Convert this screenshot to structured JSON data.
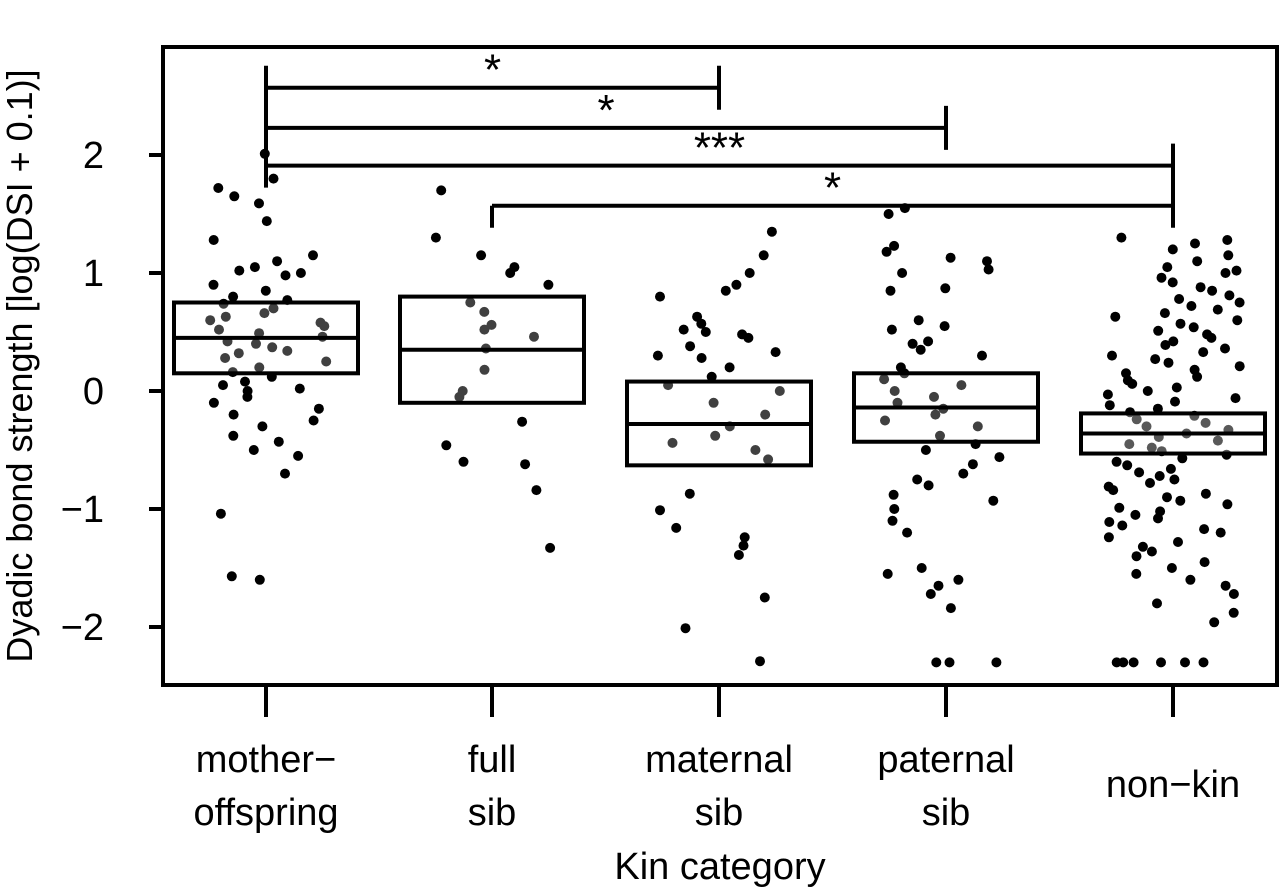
{
  "chart_data": {
    "type": "box",
    "xlabel": "Kin category",
    "ylabel": "Dyadic bond strength [log(DSI + 0.1)]",
    "ylim": [
      -2.5,
      3.0
    ],
    "yticks": [
      -2,
      -1,
      0,
      1,
      2
    ],
    "ytick_labels": [
      "−2",
      "−1",
      "0",
      "1",
      "2"
    ],
    "categories": [
      {
        "line1": "mother−",
        "line2": "offspring"
      },
      {
        "line1": "full",
        "line2": "sib"
      },
      {
        "line1": "maternal",
        "line2": "sib"
      },
      {
        "line1": "paternal",
        "line2": "sib"
      },
      {
        "line1": "non−kin",
        "line2": ""
      }
    ],
    "boxes": [
      {
        "q1": 0.15,
        "median": 0.45,
        "q3": 0.75
      },
      {
        "q1": -0.1,
        "median": 0.35,
        "q3": 0.8
      },
      {
        "q1": -0.63,
        "median": -0.28,
        "q3": 0.08
      },
      {
        "q1": -0.43,
        "median": -0.14,
        "q3": 0.15
      },
      {
        "q1": -0.53,
        "median": -0.36,
        "q3": -0.19
      }
    ],
    "points": [
      [
        2.01,
        1.8,
        1.72,
        1.65,
        1.59,
        1.44,
        1.28,
        1.15,
        1.1,
        1.05,
        1.02,
        1.0,
        0.98,
        0.9,
        0.85,
        0.8,
        0.77,
        0.74,
        0.7,
        0.66,
        0.63,
        0.6,
        0.58,
        0.55,
        0.52,
        0.49,
        0.46,
        0.42,
        0.4,
        0.37,
        0.34,
        0.32,
        0.28,
        0.25,
        0.2,
        0.16,
        0.12,
        0.08,
        0.05,
        0.02,
        0.0,
        -0.05,
        -0.1,
        -0.15,
        -0.2,
        -0.25,
        -0.3,
        -0.38,
        -0.43,
        -0.5,
        -0.55,
        -0.7,
        -1.04,
        -1.57,
        -1.6
      ],
      [
        1.7,
        1.3,
        1.15,
        1.05,
        1.0,
        0.9,
        0.75,
        0.67,
        0.56,
        0.52,
        0.46,
        0.36,
        0.18,
        0.0,
        -0.05,
        -0.26,
        -0.46,
        -0.6,
        -0.62,
        -0.84,
        -1.33
      ],
      [
        1.35,
        1.15,
        1.0,
        0.9,
        0.85,
        0.8,
        0.63,
        0.57,
        0.52,
        0.5,
        0.48,
        0.45,
        0.38,
        0.33,
        0.3,
        0.28,
        0.2,
        0.12,
        0.05,
        0.0,
        -0.1,
        -0.2,
        -0.3,
        -0.38,
        -0.44,
        -0.5,
        -0.58,
        -0.87,
        -1.01,
        -1.16,
        -1.24,
        -1.31,
        -1.39,
        -1.75,
        -2.01,
        -2.29
      ],
      [
        1.55,
        1.5,
        1.23,
        1.18,
        1.13,
        1.1,
        1.03,
        1.0,
        0.87,
        0.85,
        0.6,
        0.55,
        0.52,
        0.42,
        0.4,
        0.35,
        0.3,
        0.2,
        0.15,
        0.1,
        0.05,
        0.0,
        -0.05,
        -0.1,
        -0.15,
        -0.2,
        -0.25,
        -0.3,
        -0.38,
        -0.45,
        -0.5,
        -0.56,
        -0.62,
        -0.7,
        -0.75,
        -0.8,
        -0.88,
        -0.93,
        -1.0,
        -1.1,
        -1.2,
        -1.5,
        -1.55,
        -1.6,
        -1.65,
        -1.72,
        -1.84,
        -2.3,
        -2.3,
        -2.3
      ],
      [
        1.3,
        1.28,
        1.25,
        1.2,
        1.15,
        1.1,
        1.05,
        1.02,
        1.0,
        0.96,
        0.92,
        0.88,
        0.85,
        0.81,
        0.78,
        0.75,
        0.72,
        0.69,
        0.66,
        0.63,
        0.6,
        0.57,
        0.54,
        0.51,
        0.48,
        0.45,
        0.42,
        0.39,
        0.36,
        0.33,
        0.3,
        0.27,
        0.24,
        0.21,
        0.18,
        0.15,
        0.12,
        0.09,
        0.06,
        0.03,
        0.0,
        -0.03,
        -0.06,
        -0.09,
        -0.12,
        -0.15,
        -0.18,
        -0.21,
        -0.24,
        -0.27,
        -0.3,
        -0.33,
        -0.36,
        -0.39,
        -0.42,
        -0.45,
        -0.48,
        -0.51,
        -0.54,
        -0.57,
        -0.6,
        -0.63,
        -0.66,
        -0.69,
        -0.72,
        -0.75,
        -0.78,
        -0.81,
        -0.84,
        -0.87,
        -0.9,
        -0.93,
        -0.96,
        -0.99,
        -1.02,
        -1.05,
        -1.08,
        -1.11,
        -1.14,
        -1.17,
        -1.2,
        -1.24,
        -1.28,
        -1.32,
        -1.36,
        -1.4,
        -1.45,
        -1.5,
        -1.55,
        -1.6,
        -1.65,
        -1.72,
        -1.8,
        -1.88,
        -1.96,
        -2.3,
        -2.3,
        -2.3,
        -2.3,
        -2.3,
        -2.3
      ]
    ],
    "significance": [
      {
        "from": 0,
        "to": 2,
        "y": 2.57,
        "label": "*"
      },
      {
        "from": 0,
        "to": 3,
        "y": 2.23,
        "label": "*"
      },
      {
        "from": 0,
        "to": 4,
        "y": 1.91,
        "label": "***"
      },
      {
        "from": 1,
        "to": 4,
        "y": 1.57,
        "label": "*"
      }
    ]
  }
}
